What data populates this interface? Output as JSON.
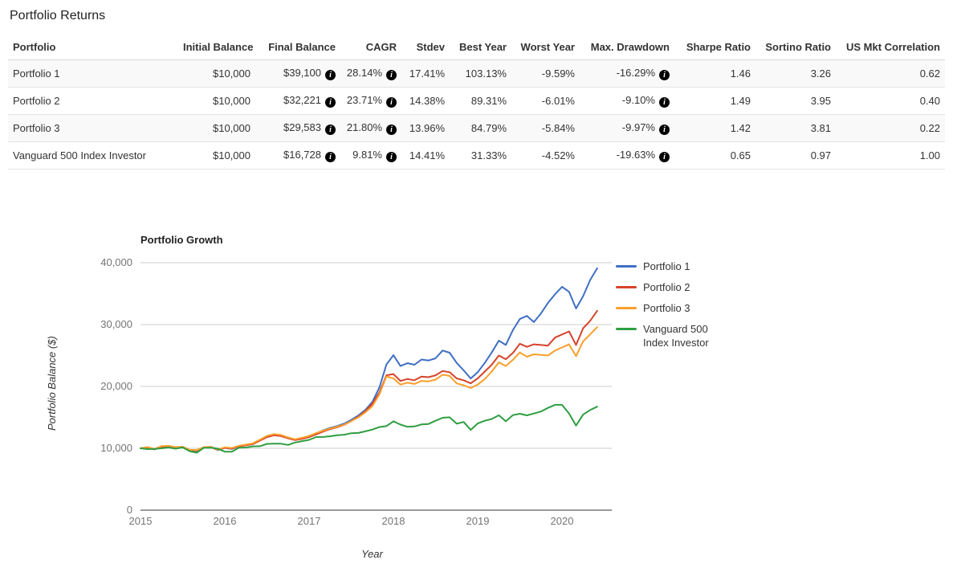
{
  "page": {
    "title": "Portfolio Returns"
  },
  "table": {
    "columns": [
      "Portfolio",
      "Initial Balance",
      "Final Balance",
      "CAGR",
      "Stdev",
      "Best Year",
      "Worst Year",
      "Max. Drawdown",
      "Sharpe Ratio",
      "Sortino Ratio",
      "US Mkt Correlation"
    ],
    "info_icon_name": "info-icon",
    "rows": [
      {
        "name": "Portfolio 1",
        "initial": "$10,000",
        "final": "$39,100",
        "cagr": "28.14%",
        "stdev": "17.41%",
        "best": "103.13%",
        "worst": "-9.59%",
        "drawdown": "-16.29%",
        "sharpe": "1.46",
        "sortino": "3.26",
        "correlation": "0.62"
      },
      {
        "name": "Portfolio 2",
        "initial": "$10,000",
        "final": "$32,221",
        "cagr": "23.71%",
        "stdev": "14.38%",
        "best": "89.31%",
        "worst": "-6.01%",
        "drawdown": "-9.10%",
        "sharpe": "1.49",
        "sortino": "3.95",
        "correlation": "0.40"
      },
      {
        "name": "Portfolio 3",
        "initial": "$10,000",
        "final": "$29,583",
        "cagr": "21.80%",
        "stdev": "13.96%",
        "best": "84.79%",
        "worst": "-5.84%",
        "drawdown": "-9.97%",
        "sharpe": "1.42",
        "sortino": "3.81",
        "correlation": "0.22"
      },
      {
        "name": "Vanguard 500 Index Investor",
        "initial": "$10,000",
        "final": "$16,728",
        "cagr": "9.81%",
        "stdev": "14.41%",
        "best": "31.33%",
        "worst": "-4.52%",
        "drawdown": "-19.63%",
        "sharpe": "0.65",
        "sortino": "0.97",
        "correlation": "1.00"
      }
    ]
  },
  "chart_data": {
    "type": "line",
    "title": "Portfolio Growth",
    "xlabel": "Year",
    "ylabel": "Portfolio Balance ($)",
    "x_start_year": 2015,
    "points_per_year": 12,
    "ylim": [
      0,
      40000
    ],
    "yticks": [
      0,
      10000,
      20000,
      30000,
      40000
    ],
    "xticks": [
      2015,
      2016,
      2017,
      2018,
      2019,
      2020
    ],
    "grid": true,
    "legend_position": "right",
    "axis_colors": {
      "grid": "#cccccc",
      "axis_line": "#333333",
      "tick_label": "#757575"
    },
    "series": [
      {
        "name": "Portfolio 1",
        "color": "#3E6FC4",
        "values": [
          10000,
          10150,
          9820,
          10300,
          10350,
          10150,
          10230,
          9650,
          9580,
          10150,
          10230,
          9720,
          10060,
          9900,
          10320,
          10520,
          10750,
          11350,
          11950,
          12250,
          12100,
          11700,
          11380,
          11600,
          11900,
          12400,
          12900,
          13300,
          13600,
          14000,
          14600,
          15300,
          16200,
          17500,
          19800,
          23550,
          25050,
          23300,
          23750,
          23500,
          24350,
          24200,
          24550,
          25800,
          25450,
          23800,
          22600,
          21290,
          22300,
          23800,
          25500,
          27400,
          26700,
          29100,
          30900,
          31400,
          30400,
          31800,
          33500,
          34900,
          36100,
          35300,
          32600,
          34600,
          37200,
          39100
        ]
      },
      {
        "name": "Portfolio 2",
        "color": "#D6432C",
        "values": [
          10000,
          10100,
          9850,
          10250,
          10300,
          10130,
          10180,
          9700,
          9640,
          10120,
          10180,
          9760,
          10080,
          9950,
          10300,
          10480,
          10680,
          11250,
          11800,
          12100,
          11980,
          11620,
          11320,
          11520,
          11800,
          12250,
          12700,
          13100,
          13400,
          13800,
          14400,
          15100,
          16000,
          17200,
          19000,
          21810,
          22000,
          20900,
          21200,
          21000,
          21600,
          21500,
          21800,
          22500,
          22300,
          21300,
          21000,
          20500,
          21300,
          22400,
          23500,
          25000,
          24400,
          25400,
          26900,
          26400,
          26800,
          26700,
          26600,
          27900,
          28400,
          28900,
          26700,
          29400,
          30600,
          32221
        ]
      },
      {
        "name": "Portfolio 3",
        "color": "#F99F2B",
        "values": [
          10000,
          10200,
          9900,
          10350,
          10400,
          10200,
          10250,
          9750,
          9700,
          10180,
          10250,
          9820,
          10150,
          10050,
          10400,
          10600,
          10800,
          11400,
          12000,
          12300,
          12150,
          11750,
          11450,
          11700,
          12000,
          12450,
          12850,
          13200,
          13500,
          13850,
          14400,
          15000,
          15800,
          16800,
          18700,
          21620,
          21300,
          20300,
          20600,
          20400,
          20900,
          20800,
          21100,
          21900,
          21700,
          20500,
          20200,
          19740,
          20300,
          21200,
          22400,
          23900,
          23300,
          24300,
          25500,
          24800,
          25200,
          25100,
          25000,
          25800,
          26300,
          26800,
          24900,
          27300,
          28400,
          29583
        ]
      },
      {
        "name": "Vanguard 500 Index Investor",
        "color": "#2F9E41",
        "values": [
          10000,
          9870,
          9900,
          10000,
          10130,
          9930,
          10140,
          9530,
          9290,
          10080,
          10110,
          9950,
          9460,
          9450,
          10090,
          10130,
          10310,
          10340,
          10720,
          10740,
          10740,
          10550,
          10940,
          11160,
          11370,
          11820,
          11830,
          11950,
          12120,
          12190,
          12440,
          12480,
          12740,
          13030,
          13430,
          13580,
          14360,
          13830,
          13480,
          13530,
          13860,
          13940,
          14460,
          14930,
          15010,
          13980,
          14260,
          12970,
          14010,
          14460,
          14740,
          15340,
          14360,
          15370,
          15590,
          15330,
          15620,
          15950,
          16530,
          17030,
          17020,
          15620,
          13680,
          15440,
          16180,
          16728
        ]
      }
    ]
  }
}
